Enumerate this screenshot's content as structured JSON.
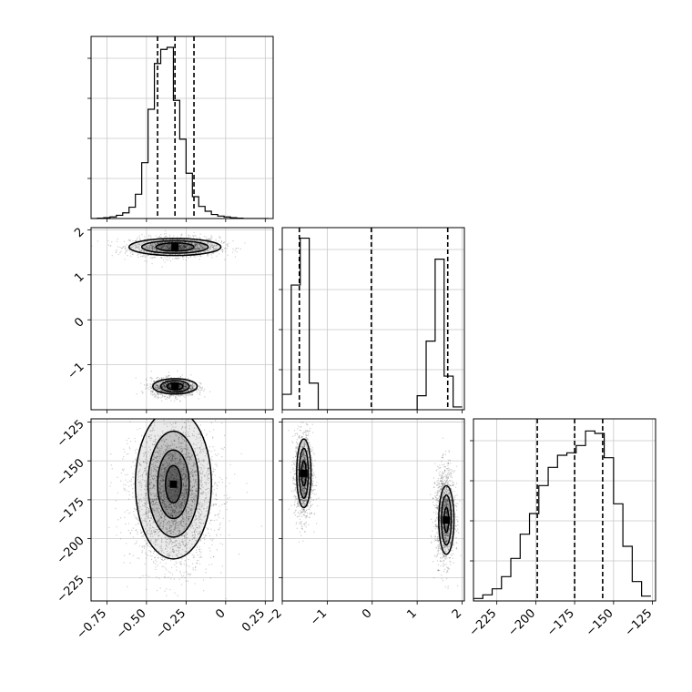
{
  "chart_data": [
    {
      "type": "histogram",
      "panel": "param0-marginal",
      "x_ticks": [
        -0.75,
        -0.5,
        -0.25,
        0.0,
        0.25
      ],
      "x_range": [
        -0.85,
        0.3
      ],
      "quantile_lines": [
        -0.43,
        -0.32,
        -0.2
      ],
      "bins": [
        -0.85,
        -0.81,
        -0.77,
        -0.73,
        -0.69,
        -0.65,
        -0.61,
        -0.57,
        -0.53,
        -0.49,
        -0.45,
        -0.41,
        -0.37,
        -0.33,
        -0.29,
        -0.25,
        -0.21,
        -0.17,
        -0.13,
        -0.09,
        -0.05,
        -0.01,
        0.03,
        0.07,
        0.11,
        0.15,
        0.19,
        0.23,
        0.27
      ],
      "counts": [
        0,
        1,
        2,
        4,
        8,
        14,
        28,
        60,
        138,
        270,
        383,
        418,
        423,
        292,
        196,
        112,
        54,
        30,
        18,
        10,
        6,
        4,
        2,
        1,
        0,
        0,
        0,
        0
      ],
      "ylim": [
        0,
        450
      ],
      "grid": true
    },
    {
      "type": "histogram",
      "panel": "param1-marginal",
      "x_ticks": [
        -2,
        -1,
        0,
        1,
        2
      ],
      "x_range": [
        -2.0,
        2.05
      ],
      "quantile_lines": [
        -1.62,
        -0.02,
        1.68
      ],
      "bins": [
        -2.0,
        -1.8,
        -1.6,
        -1.4,
        -1.2,
        -1.0,
        -0.8,
        -0.6,
        -0.4,
        -0.2,
        0.0,
        0.2,
        0.4,
        0.6,
        0.8,
        1.0,
        1.2,
        1.4,
        1.6,
        1.8,
        2.0
      ],
      "counts": [
        22,
        178,
        245,
        38,
        0,
        0,
        0,
        0,
        0,
        0,
        0,
        0,
        0,
        0,
        0,
        20,
        98,
        215,
        48,
        4
      ],
      "ylim": [
        0,
        260
      ],
      "grid": true
    },
    {
      "type": "histogram",
      "panel": "param2-marginal",
      "x_ticks": [
        -225,
        -200,
        -175,
        -150,
        -125
      ],
      "x_range": [
        -240,
        -123
      ],
      "quantile_lines": [
        -199,
        -175,
        -157
      ],
      "bins": [
        -240,
        -234,
        -228,
        -222,
        -216,
        -210,
        -204,
        -198,
        -192,
        -186,
        -180,
        -174,
        -168,
        -162,
        -156,
        -150,
        -144,
        -138,
        -132,
        -126
      ],
      "counts": [
        2,
        5,
        10,
        20,
        35,
        55,
        72,
        95,
        110,
        120,
        122,
        128,
        140,
        138,
        118,
        80,
        45,
        16,
        4
      ],
      "ylim": [
        0,
        150
      ],
      "grid": true
    },
    {
      "type": "scatter",
      "panel": "param0-vs-param1",
      "x_ticks": [
        -0.75,
        -0.5,
        -0.25,
        0.0,
        0.25
      ],
      "y_ticks": [
        -1,
        0,
        1,
        2
      ],
      "x_range": [
        -0.85,
        0.3
      ],
      "y_range": [
        -2.0,
        2.05
      ],
      "clusters": [
        {
          "cx": -0.32,
          "cy": 1.62,
          "sx": 0.14,
          "sy": 0.11,
          "n": 1600
        },
        {
          "cx": -0.33,
          "cy": -1.5,
          "sx": 0.07,
          "sy": 0.1,
          "n": 1400
        }
      ],
      "contours": [
        {
          "center": [
            -0.32,
            1.62
          ],
          "radii": [
            [
              0.12,
              0.09
            ],
            [
              0.21,
              0.14
            ],
            [
              0.29,
              0.19
            ]
          ]
        },
        {
          "center": [
            -0.32,
            -1.48
          ],
          "radii": [
            [
              0.05,
              0.08
            ],
            [
              0.09,
              0.13
            ],
            [
              0.14,
              0.17
            ]
          ]
        }
      ],
      "grid": true
    },
    {
      "type": "scatter",
      "panel": "param0-vs-param2",
      "x_ticks": [
        -0.75,
        -0.5,
        -0.25,
        0.0,
        0.25
      ],
      "y_ticks": [
        -225,
        -200,
        -175,
        -150,
        -125
      ],
      "x_range": [
        -0.85,
        0.3
      ],
      "y_range": [
        -240,
        -123
      ],
      "clusters": [
        {
          "cx": -0.33,
          "cy": -172,
          "sx": 0.13,
          "sy": 22,
          "n": 3200
        }
      ],
      "contours": [
        {
          "center": [
            -0.33,
            -165
          ],
          "radii": [
            [
              0.05,
              12
            ],
            [
              0.1,
              22
            ],
            [
              0.16,
              34
            ],
            [
              0.24,
              48
            ]
          ]
        }
      ],
      "grid": true
    },
    {
      "type": "scatter",
      "panel": "param1-vs-param2",
      "x_ticks": [
        -2,
        -1,
        0,
        1,
        2
      ],
      "y_ticks": [
        -225,
        -200,
        -175,
        -150,
        -125
      ],
      "x_range": [
        -2.0,
        2.05
      ],
      "y_range": [
        -240,
        -123
      ],
      "clusters": [
        {
          "cx": -1.52,
          "cy": -160,
          "sx": 0.1,
          "sy": 14,
          "n": 1400
        },
        {
          "cx": 1.62,
          "cy": -185,
          "sx": 0.11,
          "sy": 15,
          "n": 1400
        }
      ],
      "contours": [
        {
          "center": [
            -1.52,
            -158
          ],
          "radii": [
            [
              0.05,
              8
            ],
            [
              0.1,
              16
            ],
            [
              0.16,
              22
            ]
          ]
        },
        {
          "center": [
            1.65,
            -188
          ],
          "radii": [
            [
              0.05,
              8
            ],
            [
              0.11,
              16
            ],
            [
              0.17,
              22
            ]
          ]
        }
      ],
      "grid": true
    }
  ]
}
